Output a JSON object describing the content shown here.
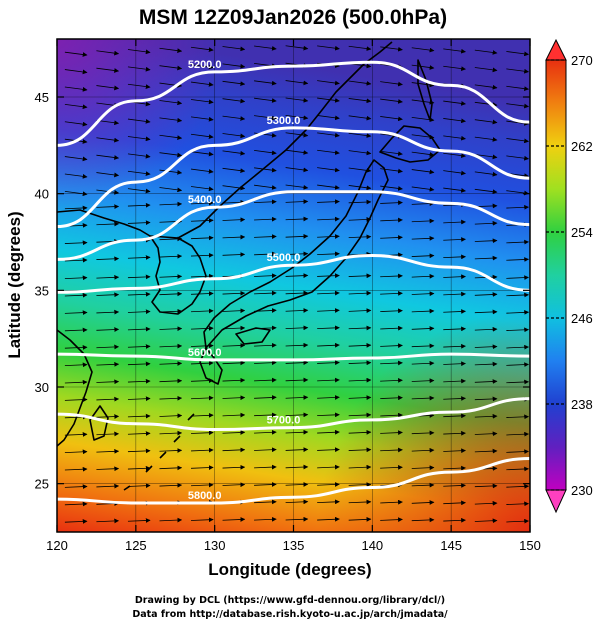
{
  "title": "MSM 12Z09Jan2026 (500.0hPa)",
  "xlabel": "Longitude (degrees)",
  "ylabel": "Latitude  (degrees)",
  "credits": [
    "Drawing by DCL (https://www.gfd-dennou.org/library/dcl/)",
    "Data from http://database.rish.kyoto-u.ac.jp/arch/jmadata/"
  ],
  "chart_data": {
    "type": "map",
    "projection": "equirectangular",
    "xlim": [
      120,
      150
    ],
    "ylim": [
      22.5,
      48
    ],
    "x_ticks": [
      "120",
      "125",
      "130",
      "135",
      "140",
      "145",
      "150"
    ],
    "y_ticks": [
      "25",
      "30",
      "35",
      "40",
      "45"
    ],
    "fill_field": "temperature (K)",
    "colorbar": {
      "min": 230,
      "max": 270,
      "ticks": [
        "230",
        "238",
        "246",
        "254",
        "262",
        "270"
      ],
      "extend": "both"
    },
    "contours": [
      {
        "label": "5200.0",
        "lon": [
          120,
          125,
          130,
          135,
          140,
          145,
          150
        ],
        "lat": [
          42.5,
          44.8,
          46.3,
          46.6,
          46.8,
          45.6,
          43.7
        ]
      },
      {
        "label": "5300.0",
        "lon": [
          120,
          125,
          130,
          135,
          140,
          145,
          150
        ],
        "lat": [
          38.3,
          40.6,
          42.5,
          43.4,
          43.2,
          42.2,
          40.8
        ]
      },
      {
        "label": "5400.0",
        "lon": [
          120,
          125,
          130,
          135,
          140,
          145,
          150
        ],
        "lat": [
          36.6,
          37.6,
          39.3,
          40.1,
          40.1,
          39.5,
          38.4
        ]
      },
      {
        "label": "5500.0",
        "lon": [
          120,
          125,
          130,
          135,
          140,
          145,
          150
        ],
        "lat": [
          34.9,
          35.1,
          35.6,
          36.3,
          36.8,
          36.2,
          35.0
        ]
      },
      {
        "label": "5600.0",
        "lon": [
          120,
          125,
          130,
          135,
          140,
          145,
          150
        ],
        "lat": [
          31.7,
          31.6,
          31.4,
          31.4,
          31.5,
          31.7,
          31.6
        ]
      },
      {
        "label": "5700.0",
        "lon": [
          120,
          125,
          130,
          135,
          140,
          145,
          150
        ],
        "lat": [
          28.6,
          28.1,
          27.8,
          27.9,
          28.3,
          28.7,
          29.4
        ]
      },
      {
        "label": "5800.0",
        "lon": [
          120,
          125,
          130,
          135,
          140,
          145,
          150
        ],
        "lat": [
          24.2,
          24.0,
          24.0,
          24.3,
          24.8,
          25.6,
          26.3
        ]
      }
    ],
    "contour_labels_shown": [
      "5200.0",
      "5300.0",
      "5400.0",
      "5500.0",
      "5600.0",
      "5700.0",
      "5800.0"
    ],
    "vectors": "streamline arrows, predominantly westerly (left-to-right)"
  }
}
